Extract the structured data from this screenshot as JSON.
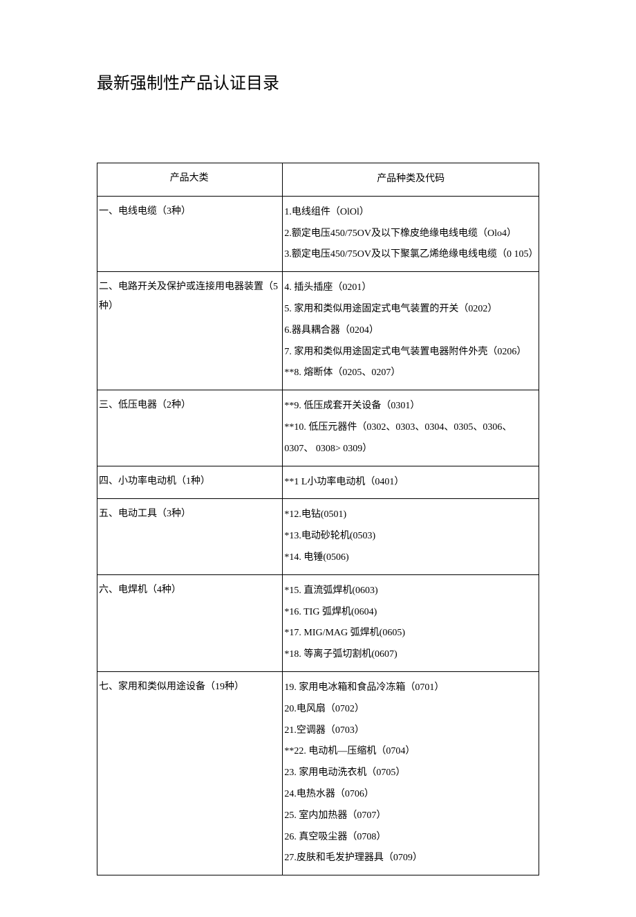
{
  "title": "最新强制性产品认证目录",
  "headers": {
    "category": "产品大类",
    "items": "产品种类及代码"
  },
  "rows": [
    {
      "category": "一、电线电缆（3种）",
      "items": [
        "1.电线组件（OlOl）",
        "2.额定电压450/75OV及以下橡皮绝缘电线电缆（Olo4）",
        "3.额定电压450/75OV及以下聚氯乙烯绝缘电线电缆（0 105）"
      ]
    },
    {
      "category": "二、电路开关及保护或连接用电器装置（5种）",
      "items": [
        "4. 插头插座（0201）",
        "5. 家用和类似用途固定式电气装置的开关（0202）",
        "6.器具耦合器（0204）",
        "7. 家用和类似用途固定式电气装置电器附件外壳（0206）",
        "**8. 熔断体（0205、0207）"
      ]
    },
    {
      "category": "三、低压电器（2种）",
      "items": [
        "**9. 低压成套开关设备（0301）",
        "**10. 低压元器件（0302、0303、0304、0305、0306、0307、  0308> 0309）"
      ]
    },
    {
      "category": "四、小功率电动机（1种）",
      "items": [
        "**1 L小功率电动机（0401）"
      ]
    },
    {
      "category": "五、电动工具（3种）",
      "items": [
        "*12.电钻(0501)",
        "*13.电动砂轮机(0503)",
        "*14. 电锤(0506)"
      ]
    },
    {
      "category": "六、电焊机（4种）",
      "items": [
        "*15. 直流弧焊机(0603)",
        "*16. TIG 弧焊机(0604)",
        "*17. MIG/MAG 弧焊机(0605)",
        "*18. 等离子弧切割机(0607)"
      ]
    },
    {
      "category": "七、家用和类似用途设备（19种）",
      "items": [
        "19. 家用电冰箱和食品冷冻箱（0701）",
        "20.电风扇（0702）",
        "21.空调器（0703）",
        "**22. 电动机—压缩机（0704）",
        "23. 家用电动洗衣机（0705）",
        "24.电热水器（0706）",
        "25. 室内加热器（0707）",
        "26. 真空吸尘器（0708）",
        "27.皮肤和毛发护理器具（0709）"
      ]
    }
  ]
}
